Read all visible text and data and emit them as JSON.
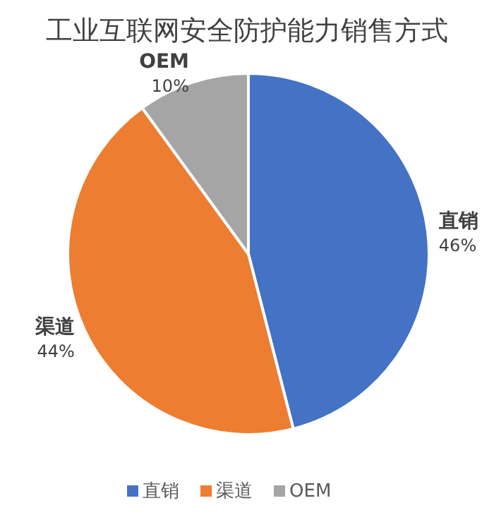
{
  "chart_data": {
    "type": "pie",
    "title": "工业互联网安全防护能力销售方式",
    "categories": [
      "直销",
      "渠道",
      "OEM"
    ],
    "values": [
      46,
      44,
      10
    ],
    "colors": [
      "#4472c4",
      "#ed7d31",
      "#a5a5a5"
    ],
    "value_labels": [
      "46%",
      "44%",
      "10%"
    ],
    "legend": "bottom"
  }
}
